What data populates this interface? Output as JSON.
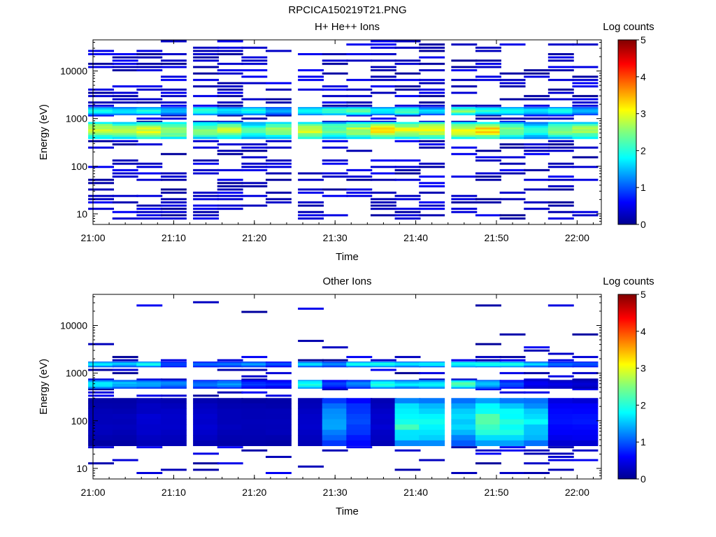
{
  "figure": {
    "title": "RPCICA150219T21.PNG"
  },
  "chart_data": [
    {
      "type": "heatmap",
      "title": "H+ He++ Ions",
      "xlabel": "Time",
      "ylabel": "Energy (eV)",
      "x_scale": "time",
      "y_scale": "log",
      "x_range": [
        "21:00",
        "22:03"
      ],
      "y_range": [
        6,
        45000
      ],
      "x_ticks": [
        "21:00",
        "21:10",
        "21:20",
        "21:30",
        "21:40",
        "21:50",
        "22:00"
      ],
      "y_ticks": [
        "10",
        "100",
        "1000",
        "10000"
      ],
      "colorbar": {
        "label": "Log counts",
        "range": [
          0,
          5
        ],
        "ticks": [
          "0",
          "1",
          "2",
          "3",
          "4",
          "5"
        ],
        "colormap": "jet"
      },
      "time_bins": [
        "21:01",
        "21:04",
        "21:07",
        "21:10",
        "21:14",
        "21:17",
        "21:20",
        "21:23",
        "21:27",
        "21:30",
        "21:33",
        "21:36",
        "21:39",
        "21:42",
        "21:46",
        "21:49",
        "21:52",
        "21:55",
        "21:58",
        "22:01"
      ],
      "summary": "Dense band of log counts 2-3.3 at ~350-800 eV and 1.5-2.5 at ~1200-1700 eV throughout the hour; sparse log counts ~0-0.5 at other energies.",
      "bands": [
        {
          "e_min": 1200,
          "e_max": 1750,
          "log_counts": [
            2.0,
            1.8,
            2.0,
            1.6,
            2.2,
            1.8,
            2.0,
            1.5,
            2.0,
            2.2,
            2.4,
            1.9,
            2.3,
            1.7,
            2.5,
            2.2,
            2.0,
            1.8,
            2.0,
            1.6
          ]
        },
        {
          "e_min": 380,
          "e_max": 850,
          "log_counts": [
            2.9,
            2.7,
            3.0,
            2.8,
            2.6,
            2.8,
            2.2,
            2.6,
            3.0,
            2.5,
            2.8,
            3.2,
            3.0,
            3.1,
            3.0,
            3.3,
            2.5,
            2.0,
            2.5,
            2.7
          ]
        }
      ]
    },
    {
      "type": "heatmap",
      "title": "Other Ions",
      "xlabel": "Time",
      "ylabel": "Energy (eV)",
      "x_scale": "time",
      "y_scale": "log",
      "x_range": [
        "21:00",
        "22:03"
      ],
      "y_range": [
        6,
        45000
      ],
      "x_ticks": [
        "21:00",
        "21:10",
        "21:20",
        "21:30",
        "21:40",
        "21:50",
        "22:00"
      ],
      "y_ticks": [
        "10",
        "100",
        "1000",
        "10000"
      ],
      "colorbar": {
        "label": "Log counts",
        "range": [
          0,
          5
        ],
        "ticks": [
          "0",
          "1",
          "2",
          "3",
          "4",
          "5"
        ],
        "colormap": "jet"
      },
      "time_bins": [
        "21:01",
        "21:04",
        "21:07",
        "21:10",
        "21:14",
        "21:17",
        "21:20",
        "21:23",
        "21:27",
        "21:30",
        "21:33",
        "21:36",
        "21:39",
        "21:42",
        "21:46",
        "21:49",
        "21:52",
        "21:55",
        "21:58",
        "22:01"
      ],
      "summary": "Bands of log counts ~1.5-2.2 near 1400-1700 eV and 500-700 eV; enhanced counts (log ~1.5-2.5) at 35-300 eV between 21:30 and 21:57; sparse low counts elsewhere.",
      "bands": [
        {
          "e_min": 1350,
          "e_max": 1750,
          "log_counts": [
            1.8,
            1.6,
            1.9,
            1.0,
            1.1,
            1.2,
            1.4,
            1.0,
            1.7,
            1.3,
            1.9,
            2.0,
            1.8,
            1.9,
            2.0,
            2.1,
            2.0,
            1.7,
            1.2,
            1.1
          ]
        },
        {
          "e_min": 480,
          "e_max": 720,
          "log_counts": [
            1.9,
            1.6,
            1.5,
            1.3,
            1.2,
            1.4,
            0.9,
            0.8,
            2.1,
            0.9,
            1.3,
            2.0,
            1.8,
            1.9,
            2.3,
            1.6,
            1.0,
            0.6,
            0.5,
            0.4
          ]
        },
        {
          "e_min": 30,
          "e_max": 300,
          "log_counts": [
            0.3,
            0.3,
            0.4,
            0.4,
            0.4,
            0.3,
            0.3,
            0.3,
            0.4,
            1.5,
            1.0,
            0.4,
            2.1,
            2.0,
            1.7,
            2.3,
            2.1,
            1.8,
            0.7,
            0.7
          ]
        }
      ]
    }
  ],
  "panels": [
    {
      "name": "ions-h-he",
      "title": "H+ He++ Ions",
      "xlabel": "Time",
      "ylabel": "Energy (eV)",
      "cbar_label": "Log counts"
    },
    {
      "name": "ions-other",
      "title": "Other Ions",
      "xlabel": "Time",
      "ylabel": "Energy (eV)",
      "cbar_label": "Log counts"
    }
  ]
}
